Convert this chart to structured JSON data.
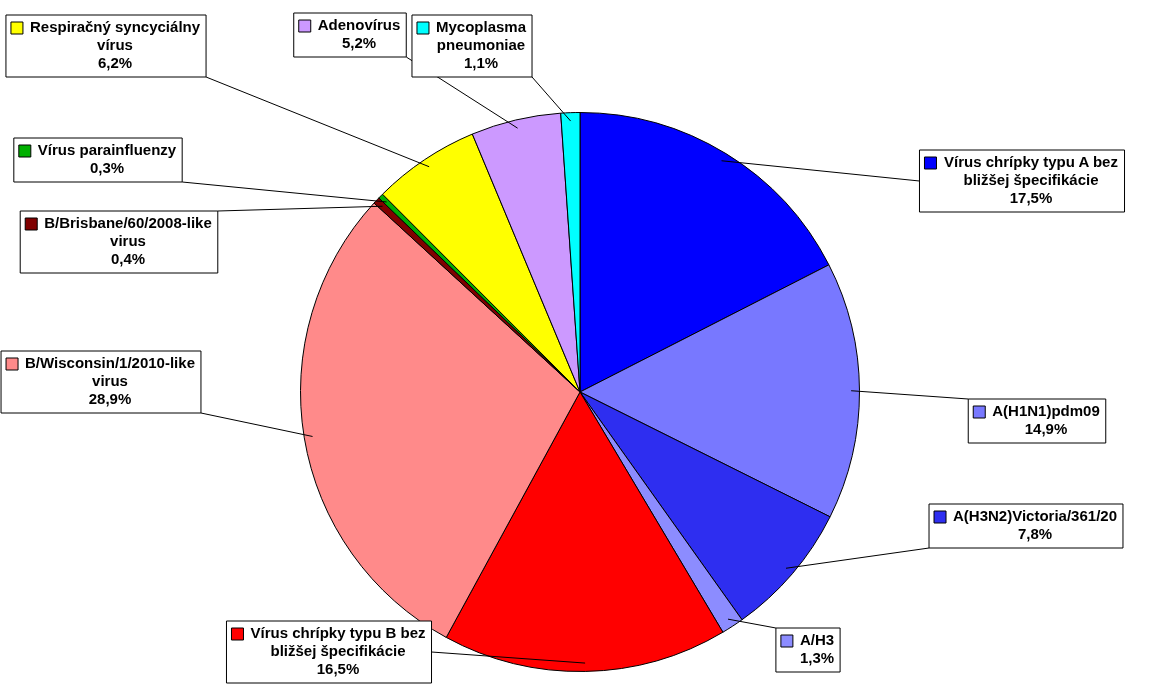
{
  "chart_data": {
    "type": "pie",
    "categories": [
      "Vírus chrípky typu A bez bližšej špecifikácie",
      "A(H1N1)pdm09",
      "A(H3N2)Victoria/361/20",
      "A/H3",
      "Vírus chrípky typu B bez bližšej špecifikácie",
      "B/Wisconsin/1/2010-like virus",
      "B/Brisbane/60/2008-like virus",
      "Vírus parainfluenzy",
      "Respiračný syncyciálny vírus",
      "Adenovírus",
      "Mycoplasma pneumoniae"
    ],
    "values": [
      17.5,
      14.9,
      7.8,
      1.3,
      16.5,
      28.9,
      0.4,
      0.3,
      6.2,
      5.2,
      1.1
    ],
    "value_labels": [
      "17,5%",
      "14,9%",
      "7,8%",
      "1,3%",
      "16,5%",
      "28,9%",
      "0,4%",
      "0,3%",
      "6,2%",
      "5,2%",
      "1,1%"
    ],
    "colors": [
      "#0000ff",
      "#7878ff",
      "#2e2ef0",
      "#8c8cff",
      "#ff0000",
      "#ff8a8a",
      "#800000",
      "#00b000",
      "#ffff00",
      "#cc99ff",
      "#00ffff"
    ],
    "legend": "left"
  }
}
